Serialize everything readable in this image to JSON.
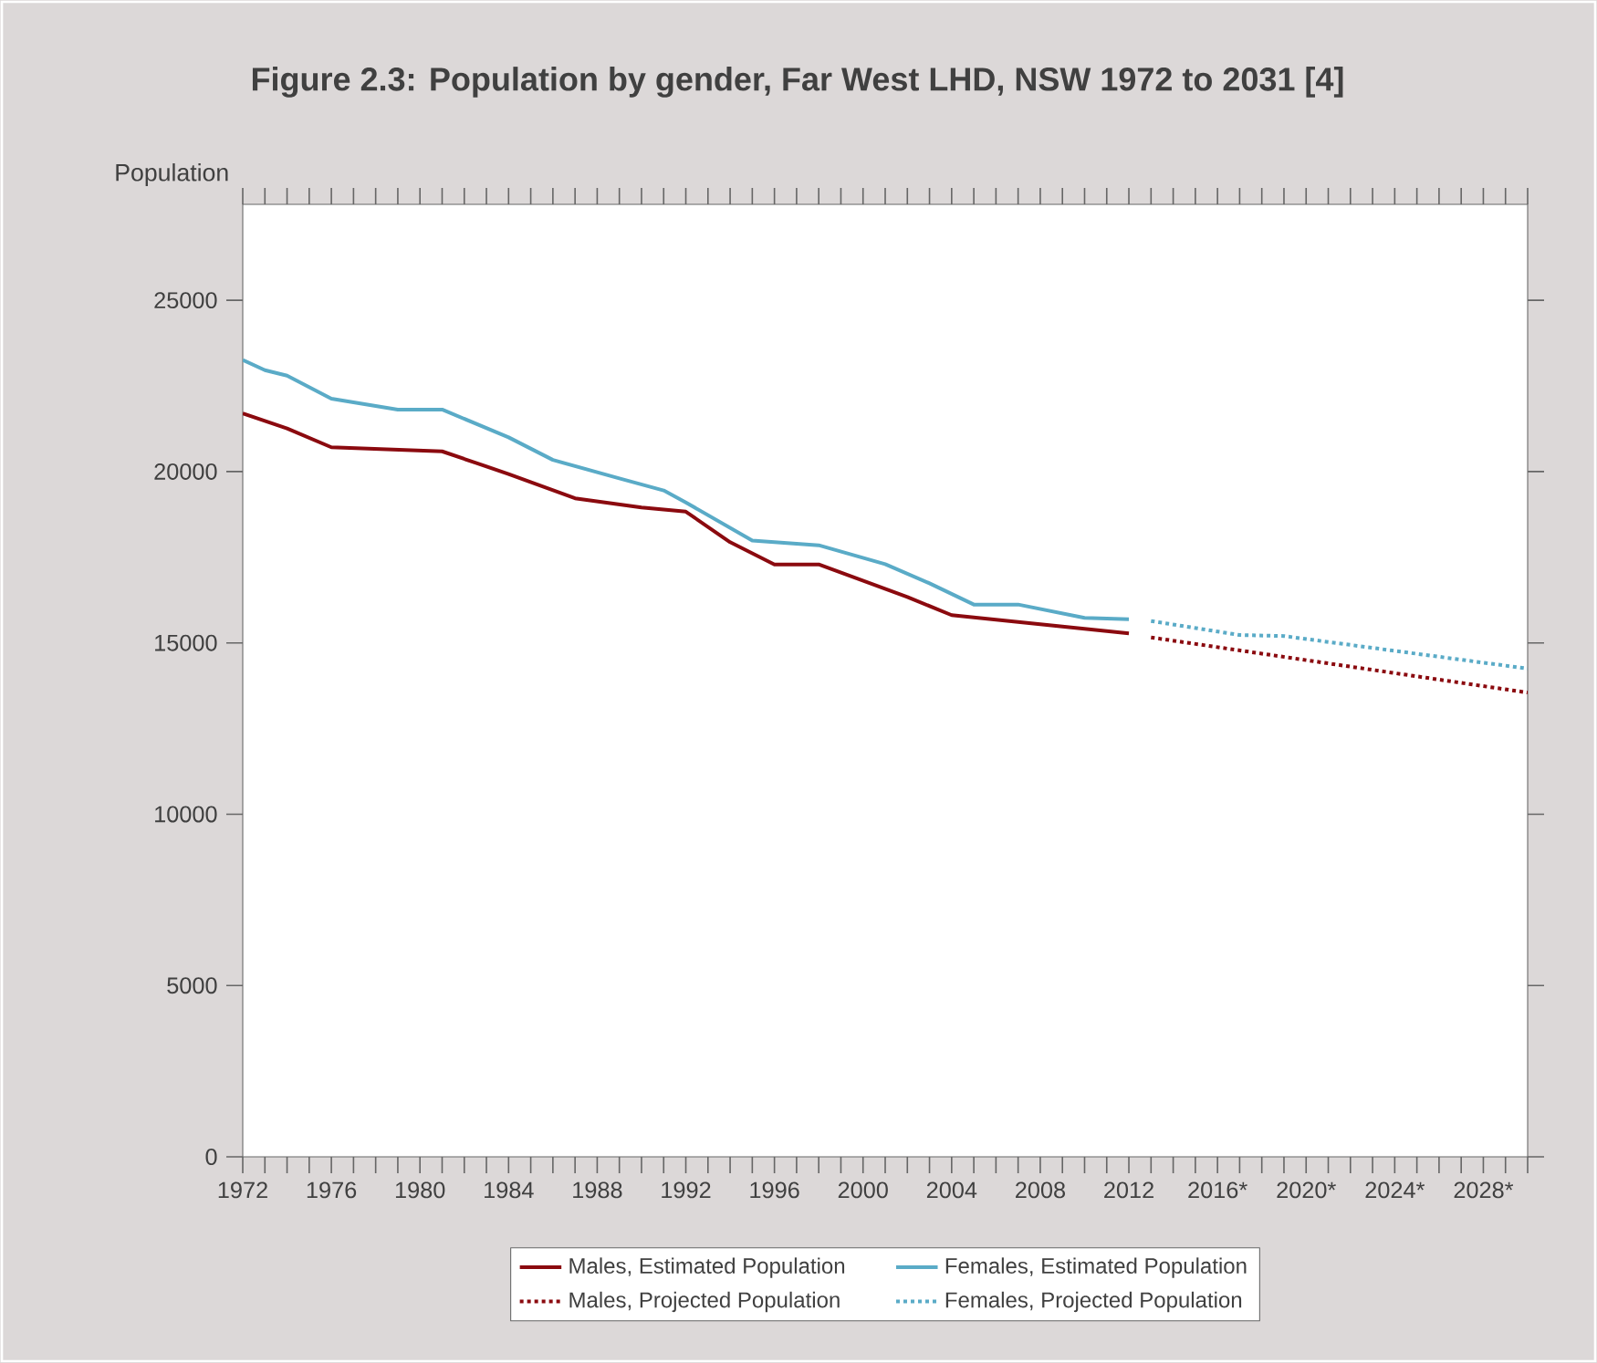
{
  "chart_data": {
    "type": "line",
    "title": "Figure 2.3: Population by gender, Far West LHD, NSW 1972 to 2031 [4]",
    "ylabel": "Population",
    "xlim": [
      1972,
      2030
    ],
    "ylim": [
      0,
      27800
    ],
    "xticks": [
      1972,
      {
        "value": 1973,
        "label": null
      },
      {
        "value": 1974,
        "label": null
      },
      {
        "value": 1975,
        "label": null
      },
      1976,
      {
        "value": 1977,
        "label": null
      },
      {
        "value": 1978,
        "label": null
      },
      {
        "value": 1979,
        "label": null
      },
      1980,
      {
        "value": 1981,
        "label": null
      },
      {
        "value": 1982,
        "label": null
      },
      {
        "value": 1983,
        "label": null
      },
      1984,
      {
        "value": 1985,
        "label": null
      },
      {
        "value": 1986,
        "label": null
      },
      {
        "value": 1987,
        "label": null
      },
      1988,
      {
        "value": 1989,
        "label": null
      },
      {
        "value": 1990,
        "label": null
      },
      {
        "value": 1991,
        "label": null
      },
      1992,
      {
        "value": 1993,
        "label": null
      },
      {
        "value": 1994,
        "label": null
      },
      {
        "value": 1995,
        "label": null
      },
      1996,
      {
        "value": 1997,
        "label": null
      },
      {
        "value": 1998,
        "label": null
      },
      {
        "value": 1999,
        "label": null
      },
      2000,
      {
        "value": 2001,
        "label": null
      },
      {
        "value": 2002,
        "label": null
      },
      {
        "value": 2003,
        "label": null
      },
      2004,
      {
        "value": 2005,
        "label": null
      },
      {
        "value": 2006,
        "label": null
      },
      {
        "value": 2007,
        "label": null
      },
      2008,
      {
        "value": 2009,
        "label": null
      },
      {
        "value": 2010,
        "label": null
      },
      {
        "value": 2011,
        "label": null
      },
      2012,
      {
        "value": 2013,
        "label": null
      },
      {
        "value": 2014,
        "label": null
      },
      {
        "value": 2015,
        "label": null
      },
      {
        "value": 2016,
        "label": "2016*"
      },
      {
        "value": 2017,
        "label": null
      },
      {
        "value": 2018,
        "label": null
      },
      {
        "value": 2019,
        "label": null
      },
      {
        "value": 2020,
        "label": "2020*"
      },
      {
        "value": 2021,
        "label": null
      },
      {
        "value": 2022,
        "label": null
      },
      {
        "value": 2023,
        "label": null
      },
      {
        "value": 2024,
        "label": "2024*"
      },
      {
        "value": 2025,
        "label": null
      },
      {
        "value": 2026,
        "label": null
      },
      {
        "value": 2027,
        "label": null
      },
      {
        "value": 2028,
        "label": "2028*"
      },
      {
        "value": 2029,
        "label": null
      },
      {
        "value": 2030,
        "label": null
      }
    ],
    "yticks": [
      0,
      5000,
      10000,
      15000,
      20000,
      25000
    ],
    "legend": "bottom",
    "series": [
      {
        "name": "Males, Estimated Population",
        "color": "#8b0a0f",
        "line_style": "solid",
        "x": [
          1972,
          1974,
          1976,
          1981,
          1984,
          1987,
          1990,
          1992,
          1994,
          1996,
          1998,
          2002,
          2004,
          2012
        ],
        "values": [
          21700,
          21260,
          20710,
          20590,
          19930,
          19220,
          18950,
          18830,
          17940,
          17290,
          17290,
          16340,
          15810,
          15280
        ]
      },
      {
        "name": "Females, Estimated Population",
        "color": "#5aabc7",
        "line_style": "solid",
        "x": [
          1972,
          1973,
          1974,
          1976,
          1979,
          1981,
          1984,
          1986,
          1989,
          1991,
          1992,
          1995,
          1998,
          2001,
          2003,
          2005,
          2007,
          2010,
          2012
        ],
        "values": [
          23260,
          22960,
          22800,
          22130,
          21810,
          21810,
          21000,
          20340,
          19800,
          19450,
          19100,
          17990,
          17850,
          17300,
          16740,
          16120,
          16120,
          15730,
          15690
        ]
      },
      {
        "name": "Males, Projected Population",
        "color": "#8b0a0f",
        "line_style": "dotted",
        "x": [
          2013,
          2030
        ],
        "values": [
          15160,
          13550
        ]
      },
      {
        "name": "Females, Projected Population",
        "color": "#5aabc7",
        "line_style": "dotted",
        "x": [
          2013,
          2017,
          2019,
          2030
        ],
        "values": [
          15640,
          15230,
          15200,
          14250
        ]
      }
    ]
  }
}
